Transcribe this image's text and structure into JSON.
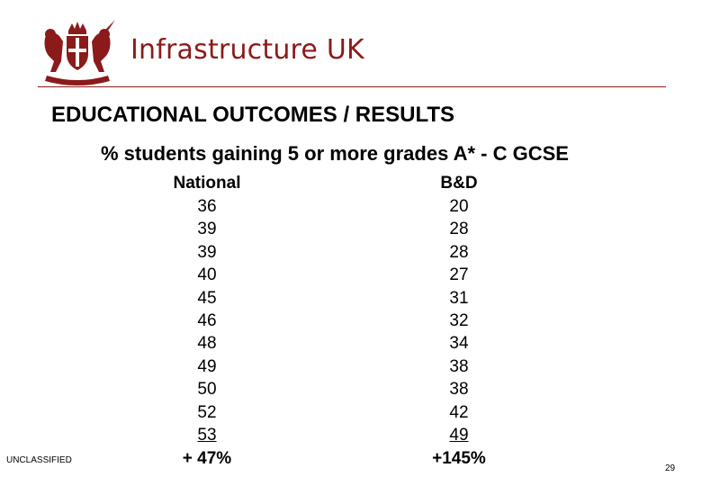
{
  "header": {
    "brand": "Infrastructure UK",
    "crest_icon": "royal-coat-of-arms-icon",
    "brand_color": "#8b1a1a"
  },
  "title": "EDUCATIONAL OUTCOMES / RESULTS",
  "subtitle": "% students gaining 5 or more grades A* - C GCSE",
  "table": {
    "columns": [
      {
        "header": "National",
        "values": [
          "36",
          "39",
          "39",
          "40",
          "45",
          "46",
          "48",
          "49",
          "50",
          "52",
          "53"
        ],
        "change": "+ 47%"
      },
      {
        "header": "B&D",
        "values": [
          "20",
          "28",
          "28",
          "27",
          "31",
          "32",
          "34",
          "38",
          "38",
          "42",
          "49"
        ],
        "change": "+145%"
      }
    ]
  },
  "footer": {
    "classification": "UNCLASSIFIED",
    "page_number": "29"
  }
}
